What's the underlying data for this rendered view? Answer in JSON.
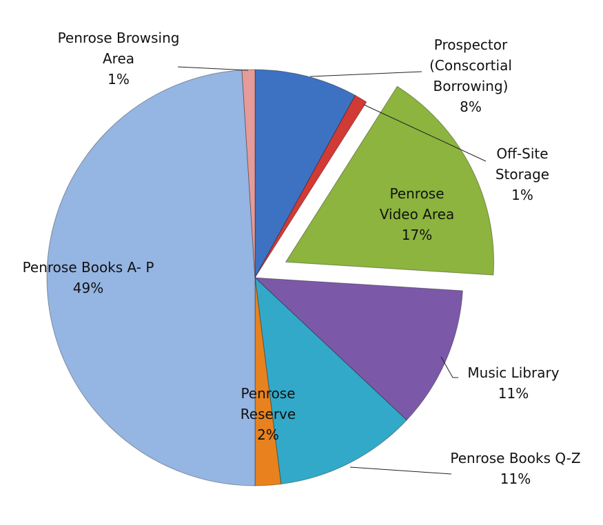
{
  "chart_data": {
    "type": "pie",
    "categories": [
      "Prospector (Conscortial Borrowing)",
      "Off-Site Storage",
      "Penrose Video Area",
      "Music Library",
      "Penrose Books Q-Z",
      "Penrose Reserve",
      "Penrose Books A- P",
      "Penrose Browsing Area"
    ],
    "values": [
      8,
      1,
      17,
      11,
      11,
      2,
      49,
      1
    ],
    "value_labels": [
      "8%",
      "1%",
      "17%",
      "11%",
      "11%",
      "2%",
      "49%",
      "1%"
    ],
    "colors": [
      "#3d72c2",
      "#d23a36",
      "#8cb43e",
      "#7b59a8",
      "#33a9c9",
      "#e8821e",
      "#95b5e2",
      "#e59b9a"
    ],
    "exploded": [
      false,
      false,
      true,
      false,
      false,
      false,
      false,
      false
    ]
  }
}
